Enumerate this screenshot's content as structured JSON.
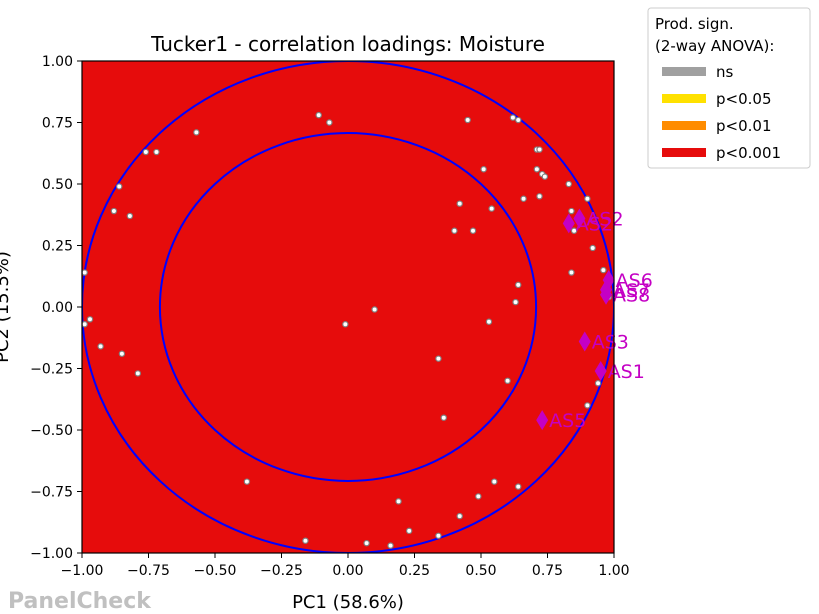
{
  "chart_data": {
    "type": "scatter",
    "title": "Tucker1 - correlation loadings: Moisture",
    "xlabel": "PC1 (58.6%)",
    "ylabel": "PC2 (15.5%)",
    "xlim": [
      -1.0,
      1.0
    ],
    "ylim": [
      -1.0,
      1.0
    ],
    "xticks": [
      "−1.00",
      "−0.75",
      "−0.50",
      "−0.25",
      "0.00",
      "0.25",
      "0.50",
      "0.75",
      "1.00"
    ],
    "yticks": [
      "1.00",
      "0.75",
      "0.50",
      "0.25",
      "0.00",
      "−0.25",
      "−0.50",
      "−0.75",
      "−1.00"
    ],
    "xtick_values": [
      -1,
      -0.75,
      -0.5,
      -0.25,
      0,
      0.25,
      0.5,
      0.75,
      1
    ],
    "ytick_values": [
      1,
      0.75,
      0.5,
      0.25,
      0,
      -0.25,
      -0.5,
      -0.75,
      -1
    ],
    "background_color": "#e60c0c",
    "circle_color": "#0000ff",
    "circles": [
      1.0,
      0.7071
    ],
    "grid": false,
    "assessor_points": [
      [
        -0.99,
        0.14
      ],
      [
        -0.99,
        -0.07
      ],
      [
        -0.97,
        -0.05
      ],
      [
        -0.93,
        -0.16
      ],
      [
        -0.88,
        0.39
      ],
      [
        -0.86,
        0.49
      ],
      [
        -0.85,
        -0.19
      ],
      [
        -0.82,
        0.37
      ],
      [
        -0.79,
        -0.27
      ],
      [
        -0.76,
        0.63
      ],
      [
        -0.72,
        0.63
      ],
      [
        -0.57,
        0.71
      ],
      [
        -0.38,
        -0.71
      ],
      [
        -0.16,
        -0.95
      ],
      [
        -0.11,
        0.78
      ],
      [
        -0.07,
        0.75
      ],
      [
        -0.01,
        -0.07
      ],
      [
        0.07,
        -0.96
      ],
      [
        0.1,
        -0.01
      ],
      [
        0.16,
        -0.97
      ],
      [
        0.19,
        -0.79
      ],
      [
        0.23,
        -0.91
      ],
      [
        0.34,
        -0.21
      ],
      [
        0.34,
        -0.93
      ],
      [
        0.36,
        -0.45
      ],
      [
        0.4,
        0.31
      ],
      [
        0.42,
        0.42
      ],
      [
        0.42,
        -0.85
      ],
      [
        0.45,
        0.76
      ],
      [
        0.47,
        0.31
      ],
      [
        0.49,
        -0.77
      ],
      [
        0.51,
        0.56
      ],
      [
        0.53,
        -0.06
      ],
      [
        0.54,
        0.4
      ],
      [
        0.55,
        -0.71
      ],
      [
        0.6,
        -0.3
      ],
      [
        0.62,
        0.77
      ],
      [
        0.63,
        0.02
      ],
      [
        0.64,
        0.09
      ],
      [
        0.64,
        0.76
      ],
      [
        0.64,
        -0.73
      ],
      [
        0.66,
        0.44
      ],
      [
        0.71,
        0.64
      ],
      [
        0.71,
        0.56
      ],
      [
        0.72,
        0.64
      ],
      [
        0.72,
        0.45
      ],
      [
        0.73,
        0.54
      ],
      [
        0.74,
        0.53
      ],
      [
        0.83,
        0.5
      ],
      [
        0.84,
        0.39
      ],
      [
        0.84,
        0.14
      ],
      [
        0.85,
        0.31
      ],
      [
        0.9,
        0.44
      ],
      [
        0.9,
        -0.4
      ],
      [
        0.92,
        0.24
      ],
      [
        0.94,
        -0.31
      ],
      [
        0.96,
        0.15
      ],
      [
        0.97,
        0.07
      ],
      [
        0.98,
        0.04
      ]
    ],
    "attribute_points": [
      {
        "name": "AS2",
        "x": 0.83,
        "y": 0.34
      },
      {
        "name": "AS2",
        "x": 0.87,
        "y": 0.36
      },
      {
        "name": "AS6",
        "x": 0.98,
        "y": 0.11
      },
      {
        "name": "AS7",
        "x": 0.97,
        "y": 0.07
      },
      {
        "name": "AS8",
        "x": 0.97,
        "y": 0.05
      },
      {
        "name": "AS3",
        "x": 0.89,
        "y": -0.14
      },
      {
        "name": "AS1",
        "x": 0.95,
        "y": -0.26
      },
      {
        "name": "AS5",
        "x": 0.73,
        "y": -0.46
      }
    ],
    "attribute_color": "#c400c4",
    "legend": {
      "title": "Prod. sign.\n (2-way ANOVA):",
      "position": "outside-top-right",
      "entries": [
        {
          "label": "ns",
          "color": "#a0a0a0"
        },
        {
          "label": "p<0.05",
          "color": "#ffe100"
        },
        {
          "label": "p<0.01",
          "color": "#ff8c00"
        },
        {
          "label": "p<0.001",
          "color": "#e60c0c"
        }
      ]
    }
  },
  "watermark": "PanelCheck"
}
